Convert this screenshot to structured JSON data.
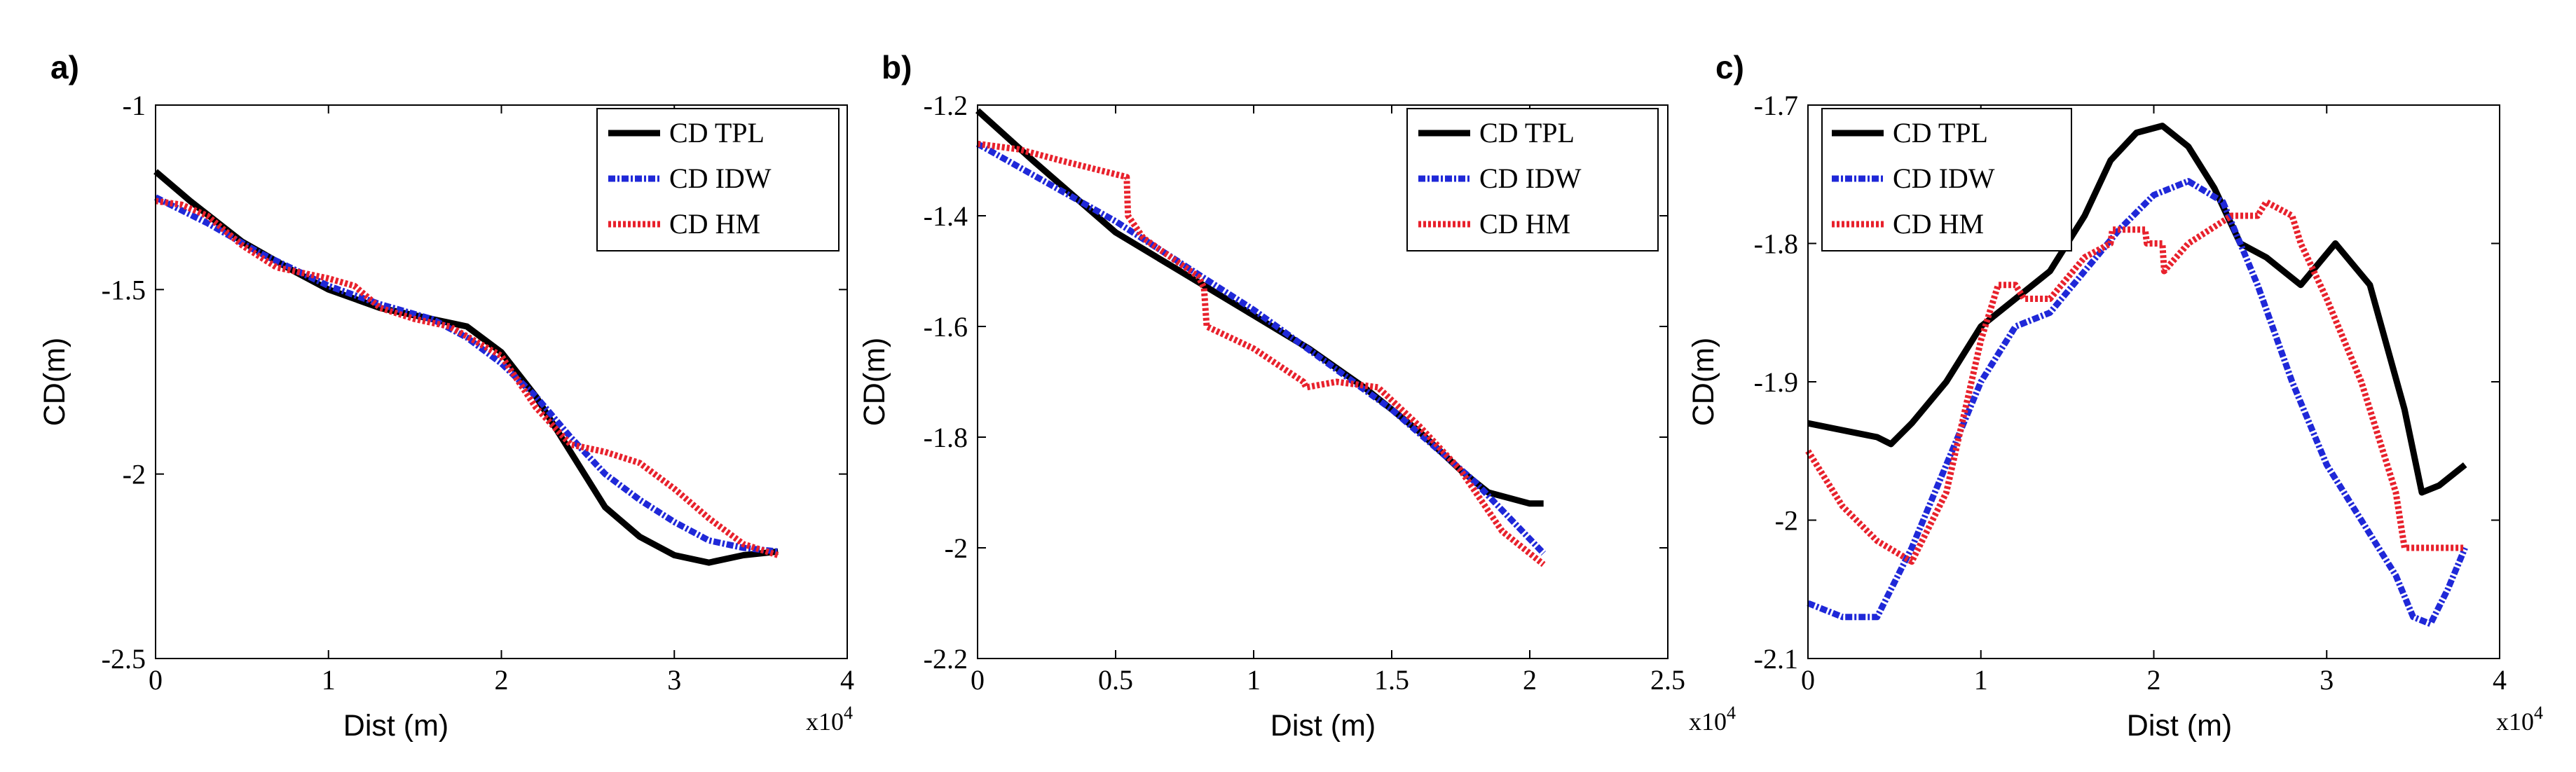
{
  "chart_data": [
    {
      "type": "line",
      "panel_label": "a)",
      "xlabel": "Dist (m)",
      "ylabel": "CD(m)",
      "x_multiplier": "x10",
      "x_multiplier_exp": "4",
      "xlim": [
        0,
        4
      ],
      "ylim": [
        -2.5,
        -1
      ],
      "xticks": [
        0,
        1,
        2,
        3,
        4
      ],
      "xtick_labels": [
        "0",
        "1",
        "2",
        "3",
        "4"
      ],
      "yticks": [
        -1,
        -1.5,
        -2,
        -2.5
      ],
      "ytick_labels": [
        "-1",
        "-1.5",
        "-2",
        "-2.5"
      ],
      "legend_position": "top-right",
      "series": [
        {
          "name": "CD TPL",
          "color": "#000000",
          "style": "solid",
          "x": [
            0,
            0.2,
            0.5,
            0.8,
            1.0,
            1.3,
            1.6,
            1.8,
            2.0,
            2.2,
            2.4,
            2.6,
            2.8,
            3.0,
            3.2,
            3.4,
            3.6
          ],
          "y": [
            -1.18,
            -1.26,
            -1.37,
            -1.45,
            -1.5,
            -1.55,
            -1.58,
            -1.6,
            -1.67,
            -1.79,
            -1.94,
            -2.09,
            -2.17,
            -2.22,
            -2.24,
            -2.22,
            -2.21
          ]
        },
        {
          "name": "CD IDW",
          "color": "#1f28d8",
          "style": "dashdot",
          "x": [
            0,
            0.3,
            0.6,
            1.0,
            1.3,
            1.6,
            1.8,
            2.0,
            2.2,
            2.4,
            2.6,
            2.8,
            3.0,
            3.2,
            3.4,
            3.6
          ],
          "y": [
            -1.25,
            -1.32,
            -1.4,
            -1.49,
            -1.54,
            -1.58,
            -1.63,
            -1.7,
            -1.79,
            -1.9,
            -2.0,
            -2.07,
            -2.13,
            -2.18,
            -2.2,
            -2.21
          ]
        },
        {
          "name": "CD HM",
          "color": "#e8212c",
          "style": "dotted",
          "x": [
            0,
            0.15,
            0.3,
            0.5,
            0.7,
            1.0,
            1.15,
            1.3,
            1.5,
            1.7,
            2.0,
            2.2,
            2.4,
            2.6,
            2.8,
            3.0,
            3.2,
            3.4,
            3.6
          ],
          "y": [
            -1.26,
            -1.27,
            -1.3,
            -1.38,
            -1.44,
            -1.47,
            -1.49,
            -1.55,
            -1.58,
            -1.6,
            -1.68,
            -1.82,
            -1.92,
            -1.94,
            -1.97,
            -2.04,
            -2.12,
            -2.19,
            -2.22
          ]
        }
      ]
    },
    {
      "type": "line",
      "panel_label": "b)",
      "xlabel": "Dist (m)",
      "ylabel": "CD(m)",
      "x_multiplier": "x10",
      "x_multiplier_exp": "4",
      "xlim": [
        0,
        2.5
      ],
      "ylim": [
        -2.2,
        -1.2
      ],
      "xticks": [
        0,
        0.5,
        1,
        1.5,
        2,
        2.5
      ],
      "xtick_labels": [
        "0",
        "0.5",
        "1",
        "1.5",
        "2",
        "2.5"
      ],
      "yticks": [
        -1.2,
        -1.4,
        -1.6,
        -1.8,
        -2,
        -2.2
      ],
      "ytick_labels": [
        "-1.2",
        "-1.4",
        "-1.6",
        "-1.8",
        "-2",
        "-2.2"
      ],
      "legend_position": "top-right",
      "series": [
        {
          "name": "CD TPL",
          "color": "#000000",
          "style": "solid",
          "x": [
            0,
            0.2,
            0.5,
            0.8,
            1.0,
            1.2,
            1.4,
            1.6,
            1.75,
            1.85,
            2.0,
            2.05
          ],
          "y": [
            -1.21,
            -1.3,
            -1.43,
            -1.52,
            -1.58,
            -1.64,
            -1.71,
            -1.79,
            -1.86,
            -1.9,
            -1.92,
            -1.92
          ]
        },
        {
          "name": "CD IDW",
          "color": "#1f28d8",
          "style": "dashdot",
          "x": [
            0,
            0.5,
            1.0,
            1.5,
            1.8,
            2.05
          ],
          "y": [
            -1.27,
            -1.41,
            -1.57,
            -1.75,
            -1.88,
            -2.01
          ]
        },
        {
          "name": "CD HM",
          "color": "#e8212c",
          "style": "dotted",
          "x": [
            0,
            0.15,
            0.3,
            0.54,
            0.545,
            0.6,
            0.8,
            0.82,
            0.83,
            1.0,
            1.18,
            1.19,
            1.3,
            1.45,
            1.6,
            1.75,
            1.9,
            2.05
          ],
          "y": [
            -1.27,
            -1.28,
            -1.3,
            -1.33,
            -1.4,
            -1.44,
            -1.51,
            -1.53,
            -1.6,
            -1.64,
            -1.7,
            -1.71,
            -1.7,
            -1.71,
            -1.78,
            -1.86,
            -1.97,
            -2.03
          ]
        }
      ]
    },
    {
      "type": "line",
      "panel_label": "c)",
      "xlabel": "Dist (m)",
      "ylabel": "CD(m)",
      "x_multiplier": "x10",
      "x_multiplier_exp": "4",
      "xlim": [
        0,
        4
      ],
      "ylim": [
        -2.1,
        -1.7
      ],
      "xticks": [
        0,
        1,
        2,
        3,
        4
      ],
      "xtick_labels": [
        "0",
        "1",
        "2",
        "3",
        "4"
      ],
      "yticks": [
        -1.7,
        -1.8,
        -1.9,
        -2,
        -2.1
      ],
      "ytick_labels": [
        "-1.7",
        "-1.8",
        "-1.9",
        "-2",
        "-2.1"
      ],
      "legend_position": "top-left",
      "series": [
        {
          "name": "CD TPL",
          "color": "#000000",
          "style": "solid",
          "x": [
            0,
            0.2,
            0.4,
            0.48,
            0.52,
            0.6,
            0.8,
            1.0,
            1.2,
            1.4,
            1.6,
            1.75,
            1.9,
            2.05,
            2.2,
            2.35,
            2.5,
            2.65,
            2.85,
            3.05,
            3.25,
            3.45,
            3.55,
            3.65,
            3.8
          ],
          "y": [
            -1.93,
            -1.935,
            -1.94,
            -1.945,
            -1.94,
            -1.93,
            -1.9,
            -1.86,
            -1.84,
            -1.82,
            -1.78,
            -1.74,
            -1.72,
            -1.715,
            -1.73,
            -1.76,
            -1.8,
            -1.81,
            -1.83,
            -1.8,
            -1.83,
            -1.92,
            -1.98,
            -1.975,
            -1.96
          ]
        },
        {
          "name": "CD IDW",
          "color": "#1f28d8",
          "style": "dashdot",
          "x": [
            0,
            0.2,
            0.4,
            0.6,
            0.8,
            1.0,
            1.2,
            1.4,
            1.6,
            1.8,
            2.0,
            2.2,
            2.4,
            2.6,
            2.8,
            3.0,
            3.2,
            3.4,
            3.5,
            3.6,
            3.7,
            3.8
          ],
          "y": [
            -2.06,
            -2.07,
            -2.07,
            -2.02,
            -1.96,
            -1.9,
            -1.86,
            -1.85,
            -1.82,
            -1.79,
            -1.765,
            -1.755,
            -1.77,
            -1.83,
            -1.9,
            -1.96,
            -2.0,
            -2.04,
            -2.07,
            -2.075,
            -2.05,
            -2.02
          ]
        },
        {
          "name": "CD HM",
          "color": "#e8212c",
          "style": "dotted",
          "x": [
            0,
            0.2,
            0.4,
            0.6,
            0.8,
            1.0,
            1.1,
            1.2,
            1.25,
            1.4,
            1.6,
            1.75,
            1.76,
            1.95,
            1.96,
            2.05,
            2.06,
            2.2,
            2.45,
            2.6,
            2.65,
            2.8,
            2.85,
            3.0,
            3.2,
            3.4,
            3.45,
            3.8
          ],
          "y": [
            -1.95,
            -1.99,
            -2.015,
            -2.03,
            -1.98,
            -1.87,
            -1.83,
            -1.83,
            -1.84,
            -1.84,
            -1.81,
            -1.8,
            -1.79,
            -1.79,
            -1.8,
            -1.8,
            -1.82,
            -1.8,
            -1.78,
            -1.78,
            -1.77,
            -1.78,
            -1.8,
            -1.84,
            -1.9,
            -1.98,
            -2.02,
            -2.02
          ]
        }
      ]
    }
  ]
}
